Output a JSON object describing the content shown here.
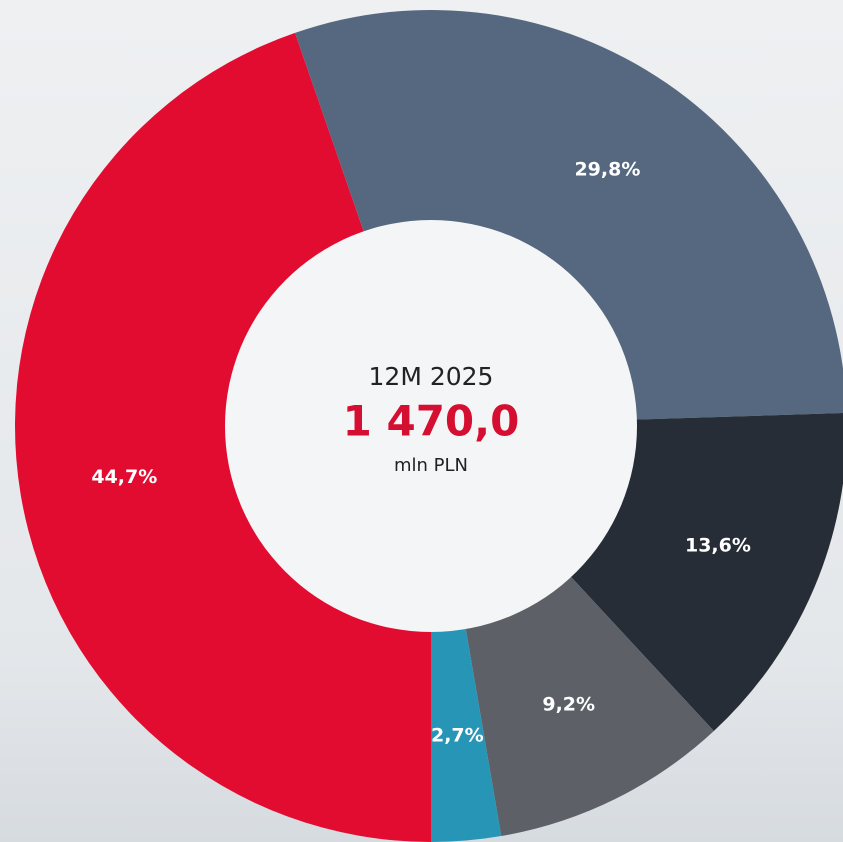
{
  "chart_data": {
    "type": "pie",
    "period": "12M 2025",
    "total": {
      "value": 1470.0,
      "label": "1 470,0"
    },
    "unit": "mln PLN",
    "categories": [
      null,
      null,
      null,
      null,
      null
    ],
    "values": [
      44.7,
      29.8,
      13.6,
      9.2,
      2.7
    ],
    "value_labels": [
      "44,7%",
      "29,8%",
      "13,6%",
      "9,2%",
      "2,7%"
    ],
    "colors": [
      "#e20c30",
      "#55687f",
      "#262d36",
      "#5d6167",
      "#2795b6"
    ]
  }
}
